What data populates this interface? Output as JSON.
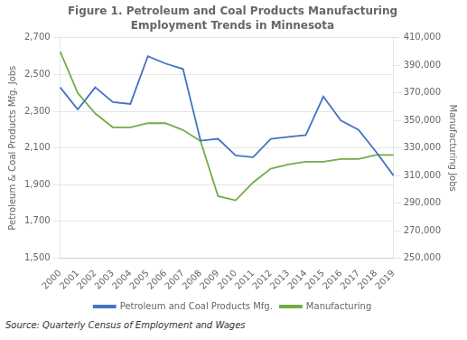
{
  "chart_data": {
    "type": "line",
    "title": "Figure 1. Petroleum and Coal Products Manufacturing",
    "subtitle": "Employment Trends in Minnesota",
    "ylabel": "Petroleum & Coal Products Mfg. Jobs",
    "y2label": "Manufacturing Jobs",
    "annotations": [
      "Source: Quarterly Census of Employment and Wages"
    ],
    "categories": [
      2000,
      2001,
      2002,
      2003,
      2004,
      2005,
      2006,
      2007,
      2008,
      2009,
      2010,
      2011,
      2012,
      2013,
      2014,
      2015,
      2016,
      2017,
      2018,
      2019
    ],
    "series": [
      {
        "name": "Petroleum and Coal Products Mfg.",
        "color": "#4472C4",
        "values": [
          2430,
          2310,
          2430,
          2350,
          2340,
          2600,
          2560,
          2530,
          2140,
          2150,
          2060,
          2050,
          2150,
          2160,
          2170,
          2380,
          2250,
          2200,
          2080,
          1950
        ]
      },
      {
        "name": "Manufacturing",
        "color": "#70AD47",
        "axis": "y2",
        "values": [
          400000,
          370000,
          355000,
          345000,
          345000,
          348000,
          348000,
          343000,
          335000,
          295000,
          292000,
          305000,
          315000,
          318000,
          320000,
          320000,
          322000,
          322000,
          325000,
          325000
        ]
      }
    ],
    "ylim": [
      1500,
      2700
    ],
    "yticks": [
      {
        "value": 1500,
        "label": "1,500"
      },
      {
        "value": 1700,
        "label": "1,700"
      },
      {
        "value": 1900,
        "label": "1,900"
      },
      {
        "value": 2100,
        "label": "2,100"
      },
      {
        "value": 2300,
        "label": "2,300"
      },
      {
        "value": 2500,
        "label": "2,500"
      },
      {
        "value": 2700,
        "label": "2,700"
      }
    ],
    "y2lim": [
      250000,
      410000
    ],
    "y2ticks": [
      {
        "value": 250000,
        "label": "250,000"
      },
      {
        "value": 270000,
        "label": "270,000"
      },
      {
        "value": 290000,
        "label": "290,000"
      },
      {
        "value": 310000,
        "label": "310,000"
      },
      {
        "value": 330000,
        "label": "330,000"
      },
      {
        "value": 350000,
        "label": "350,000"
      },
      {
        "value": 370000,
        "label": "370,000"
      },
      {
        "value": 390000,
        "label": "390,000"
      },
      {
        "value": 410000,
        "label": "410,000"
      }
    ],
    "grid": true,
    "legend": "bottom"
  }
}
